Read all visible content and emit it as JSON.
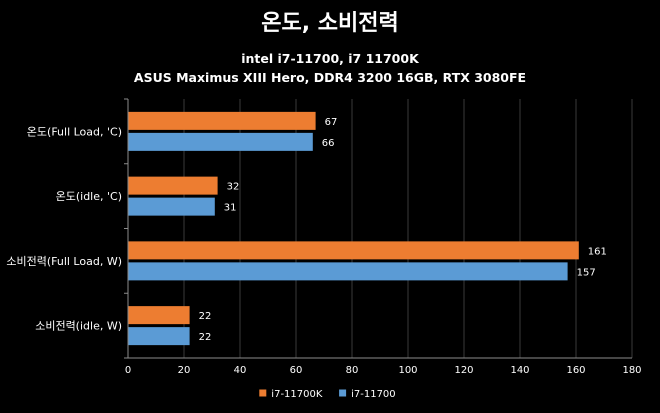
{
  "chart_data": {
    "type": "bar",
    "orientation": "horizontal",
    "title": "온도, 소비전력",
    "subtitle_lines": [
      "intel i7-11700,  i7 11700K",
      "ASUS Maximus XIII Hero, DDR4 3200 16GB, RTX 3080FE"
    ],
    "categories": [
      "온도(Full Load, 'C)",
      "온도(idle, 'C)",
      "소비전력(Full Load, W)",
      "소비전력(idle, W)"
    ],
    "series": [
      {
        "name": "i7-11700K",
        "color": "#ED7D31",
        "values": [
          67,
          32,
          161,
          22
        ]
      },
      {
        "name": "i7-11700",
        "color": "#5B9BD5",
        "values": [
          66,
          31,
          157,
          22
        ]
      }
    ],
    "xlim": [
      0,
      180
    ],
    "xticks": [
      0,
      20,
      40,
      60,
      80,
      100,
      120,
      140,
      160,
      180
    ],
    "grid": true,
    "legend_position": "bottom"
  }
}
